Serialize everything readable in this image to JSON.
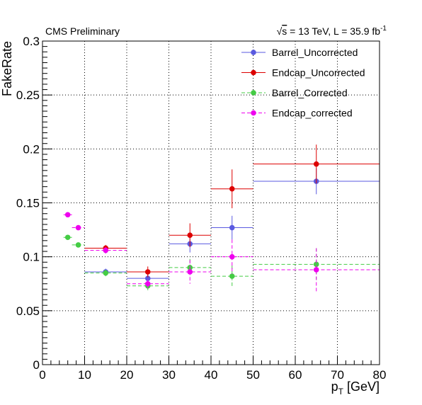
{
  "header": {
    "left": "CMS Preliminary",
    "right_sqrt": "√",
    "right_s": "s",
    "right_rest": " = 13 TeV, L = 35.9 fb",
    "right_sup": "-1"
  },
  "chart_data": {
    "type": "scatter",
    "title": "",
    "xlabel_main": "p",
    "xlabel_sub": "T",
    "xlabel_rest": " [GeV]",
    "ylabel": "FakeRate",
    "xlim": [
      0,
      80
    ],
    "ylim": [
      0,
      0.3
    ],
    "grid": true,
    "legend_position": "top-right",
    "x_ticks": [
      "0",
      "10",
      "20",
      "30",
      "40",
      "50",
      "60",
      "70",
      "80"
    ],
    "y_ticks": [
      "0",
      "0.05",
      "0.1",
      "0.15",
      "0.2",
      "0.25",
      "0.3"
    ],
    "series": [
      {
        "name": "Barrel_Uncorrected",
        "color": "#5a5ae0",
        "dashed": false,
        "points": [
          {
            "x": 15,
            "y": 0.086,
            "xerr": 5,
            "yerr": 0.003
          },
          {
            "x": 25,
            "y": 0.08,
            "xerr": 5,
            "yerr": 0.005
          },
          {
            "x": 35,
            "y": 0.112,
            "xerr": 5,
            "yerr": 0.008
          },
          {
            "x": 45,
            "y": 0.127,
            "xerr": 5,
            "yerr": 0.011
          },
          {
            "x": 65,
            "y": 0.17,
            "xerr": 15,
            "yerr": 0.012
          }
        ]
      },
      {
        "name": "Endcap_Uncorrected",
        "color": "#dd0000",
        "dashed": false,
        "points": [
          {
            "x": 15,
            "y": 0.108,
            "xerr": 5,
            "yerr": 0.003
          },
          {
            "x": 25,
            "y": 0.086,
            "xerr": 5,
            "yerr": 0.005
          },
          {
            "x": 35,
            "y": 0.12,
            "xerr": 5,
            "yerr": 0.011
          },
          {
            "x": 45,
            "y": 0.163,
            "xerr": 5,
            "yerr": 0.018
          },
          {
            "x": 65,
            "y": 0.186,
            "xerr": 15,
            "yerr": 0.018
          }
        ]
      },
      {
        "name": "Barrel_Corrected",
        "color": "#44cc44",
        "dashed": true,
        "points": [
          {
            "x": 6,
            "y": 0.118,
            "xerr": 1,
            "yerr": 0.002
          },
          {
            "x": 8.5,
            "y": 0.111,
            "xerr": 1.5,
            "yerr": 0.002
          },
          {
            "x": 15,
            "y": 0.085,
            "xerr": 5,
            "yerr": 0.003
          },
          {
            "x": 25,
            "y": 0.073,
            "xerr": 5,
            "yerr": 0.004
          },
          {
            "x": 35,
            "y": 0.09,
            "xerr": 5,
            "yerr": 0.008
          },
          {
            "x": 45,
            "y": 0.082,
            "xerr": 5,
            "yerr": 0.01
          },
          {
            "x": 65,
            "y": 0.093,
            "xerr": 15,
            "yerr": 0.015
          }
        ]
      },
      {
        "name": "Endcap_corrected",
        "color": "#ee00ee",
        "dashed": true,
        "points": [
          {
            "x": 6,
            "y": 0.139,
            "xerr": 1,
            "yerr": 0.002
          },
          {
            "x": 8.5,
            "y": 0.127,
            "xerr": 1.5,
            "yerr": 0.002
          },
          {
            "x": 15,
            "y": 0.106,
            "xerr": 5,
            "yerr": 0.003
          },
          {
            "x": 25,
            "y": 0.075,
            "xerr": 5,
            "yerr": 0.004
          },
          {
            "x": 35,
            "y": 0.086,
            "xerr": 5,
            "yerr": 0.011
          },
          {
            "x": 45,
            "y": 0.1,
            "xerr": 5,
            "yerr": 0.016
          },
          {
            "x": 65,
            "y": 0.088,
            "xerr": 15,
            "yerr": 0.02
          }
        ]
      }
    ]
  }
}
